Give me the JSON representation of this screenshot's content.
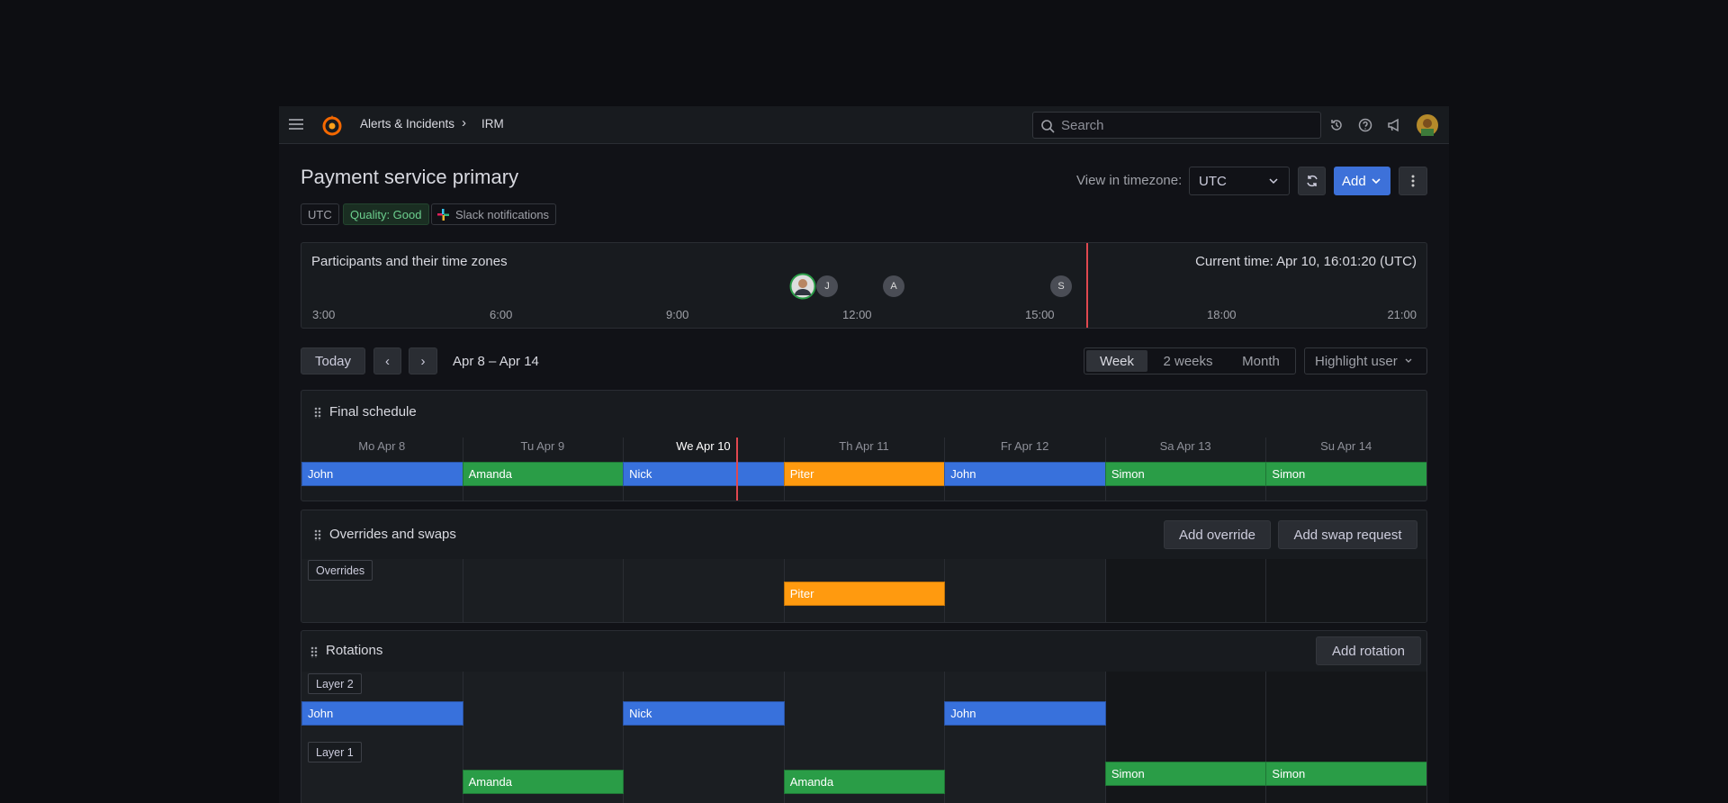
{
  "header": {
    "breadcrumbs": [
      "Alerts & Incidents",
      "IRM"
    ],
    "search_placeholder": "Search"
  },
  "page": {
    "title": "Payment service primary",
    "tags": [
      "UTC",
      "Quality: Good",
      "Slack notifications"
    ],
    "timezone_label": "View in timezone:",
    "timezone_value": "UTC",
    "add_button": "Add"
  },
  "participants": {
    "title": "Participants and their time zones",
    "current_time": "Current time: Apr 10, 16:01:20 (UTC)",
    "initials": [
      "J",
      "A",
      "S"
    ],
    "times": [
      "3:00",
      "6:00",
      "9:00",
      "12:00",
      "15:00",
      "18:00",
      "21:00"
    ]
  },
  "toolbar": {
    "today": "Today",
    "range": "Apr 8 – Apr 14",
    "views": [
      "Week",
      "2 weeks",
      "Month"
    ],
    "highlight": "Highlight user"
  },
  "days": [
    "Mo Apr 8",
    "Tu Apr 9",
    "We Apr 10",
    "Th Apr 11",
    "Fr Apr 12",
    "Sa Apr 13",
    "Su Apr 14"
  ],
  "final_schedule": {
    "title": "Final schedule",
    "shifts": [
      {
        "user": "John",
        "color": "#3871dc"
      },
      {
        "user": "Amanda",
        "color": "#2a9d47"
      },
      {
        "user": "Nick",
        "color": "#3871dc"
      },
      {
        "user": "Piter",
        "color": "#ff9a0f"
      },
      {
        "user": "John",
        "color": "#3871dc"
      },
      {
        "user": "Simon",
        "color": "#2a9d47"
      },
      {
        "user": "Simon",
        "color": "#2a9d47"
      }
    ]
  },
  "overrides": {
    "title": "Overrides and swaps",
    "buttons": [
      "Add override",
      "Add swap request"
    ],
    "row_label": "Overrides",
    "shifts": [
      null,
      null,
      null,
      {
        "user": "Piter",
        "color": "#ff9a0f"
      },
      null,
      null,
      null
    ]
  },
  "rotations": {
    "title": "Rotations",
    "button": "Add rotation",
    "layers": [
      {
        "label": "Layer 2",
        "shifts": [
          {
            "user": "John",
            "color": "#3871dc"
          },
          null,
          {
            "user": "Nick",
            "color": "#3871dc"
          },
          null,
          {
            "user": "John",
            "color": "#3871dc"
          },
          null,
          null
        ]
      },
      {
        "label": "Layer 1",
        "shifts": [
          null,
          {
            "user": "Amanda",
            "color": "#2a9d47"
          },
          null,
          {
            "user": "Amanda",
            "color": "#2a9d47"
          },
          null,
          {
            "user": "Simon",
            "color": "#2a9d47"
          },
          {
            "user": "Simon",
            "color": "#2a9d47"
          }
        ]
      }
    ]
  }
}
